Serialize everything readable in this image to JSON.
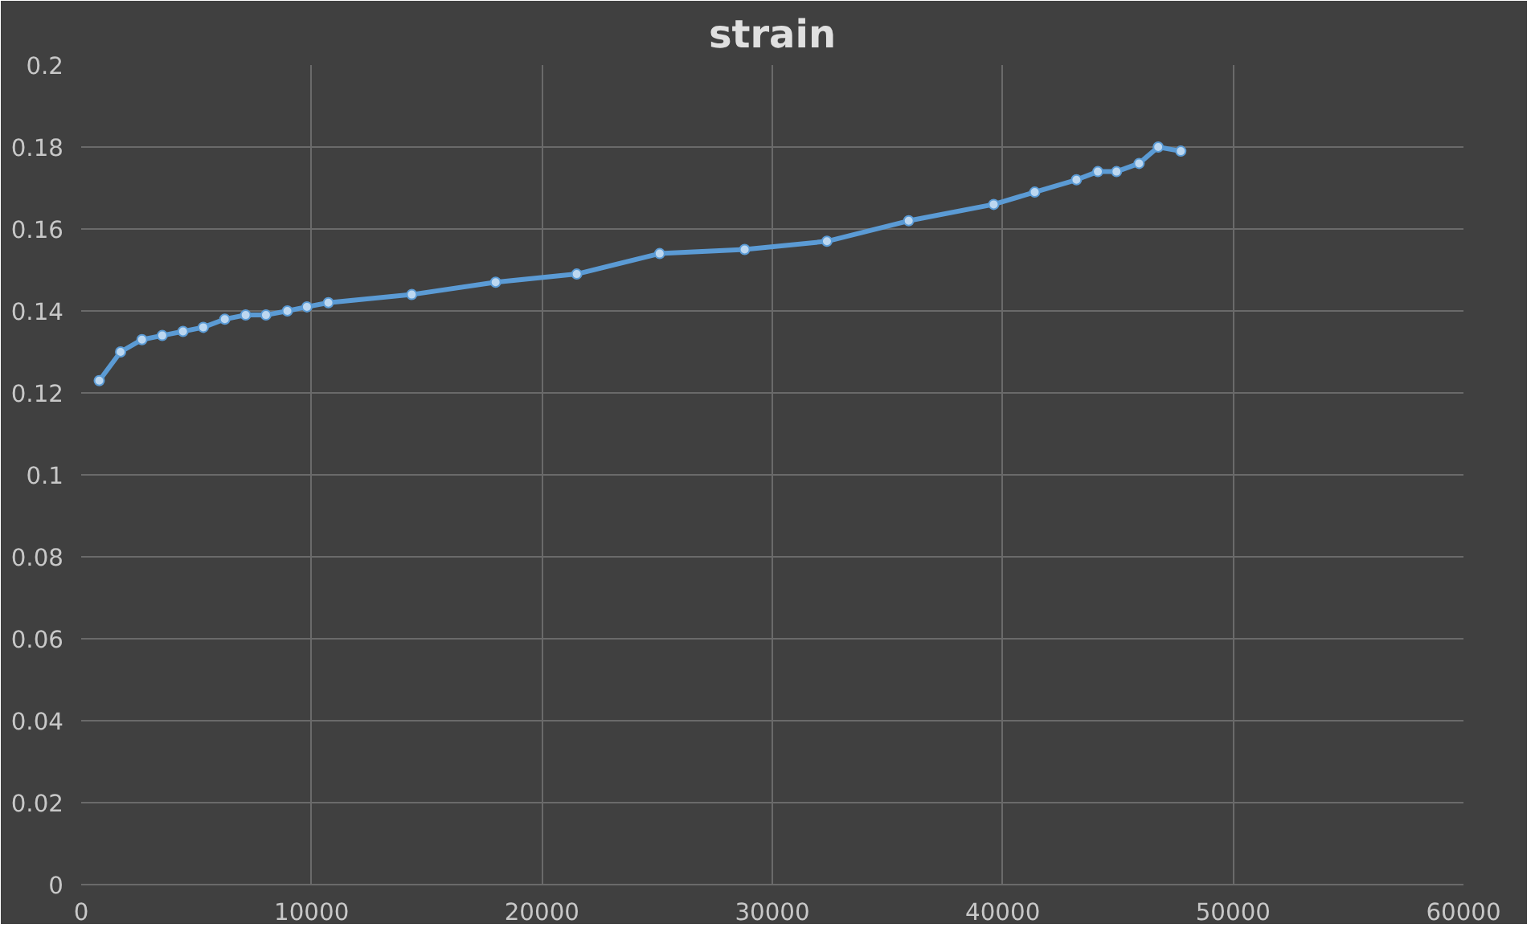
{
  "chart_data": {
    "type": "line",
    "title": "strain",
    "marker": "circle",
    "line_style": "solid",
    "grid": true,
    "xlim": [
      0,
      60000
    ],
    "xticks": [
      0,
      10000,
      20000,
      30000,
      40000,
      50000,
      60000
    ],
    "ylim": [
      0,
      0.2
    ],
    "yticks": [
      0,
      0.02,
      0.04,
      0.06,
      0.08,
      0.1,
      0.12,
      0.14,
      0.16,
      0.18,
      0.2
    ],
    "series": [
      {
        "color": "#5b9bd5",
        "x": [
          785,
          1710,
          2640,
          3520,
          4420,
          5300,
          6235,
          7140,
          8020,
          8950,
          9800,
          10730,
          14350,
          17990,
          21510,
          25110,
          28800,
          32370,
          35920,
          39610,
          41390,
          43200,
          44130,
          44940,
          45920,
          46750,
          47730
        ],
        "values": [
          0.123,
          0.13,
          0.133,
          0.134,
          0.135,
          0.136,
          0.138,
          0.139,
          0.139,
          0.14,
          0.141,
          0.142,
          0.144,
          0.147,
          0.149,
          0.154,
          0.155,
          0.157,
          0.162,
          0.166,
          0.169,
          0.172,
          0.174,
          0.174,
          0.176,
          0.18,
          0.179
        ]
      }
    ]
  }
}
